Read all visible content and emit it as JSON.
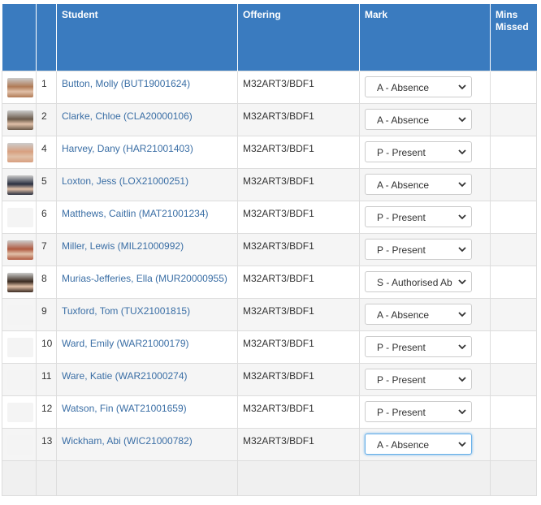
{
  "table": {
    "headers": [
      "Student",
      "Offering",
      "Mark",
      "Mins Missed"
    ],
    "rows": [
      [
        "1",
        "Button, Molly (BUT19001624)",
        "M32ART3/BDF1",
        "A - Absence"
      ],
      [
        "2",
        "Clarke, Chloe (CLA20000106)",
        "M32ART3/BDF1",
        "A - Absence"
      ],
      [
        "4",
        "Harvey, Dany (HAR21001403)",
        "M32ART3/BDF1",
        "P - Present"
      ],
      [
        "5",
        "Loxton, Jess (LOX21000251)",
        "M32ART3/BDF1",
        "A - Absence"
      ],
      [
        "6",
        "Matthews, Caitlin (MAT21001234)",
        "M32ART3/BDF1",
        "P - Present"
      ],
      [
        "7",
        "Miller, Lewis (MIL21000992)",
        "M32ART3/BDF1",
        "P - Present"
      ],
      [
        "8",
        "Murias-Jefferies, Ella (MUR20000955)",
        "M32ART3/BDF1",
        "S - Authorised Ab"
      ],
      [
        "9",
        "Tuxford, Tom (TUX21001815)",
        "M32ART3/BDF1",
        "A - Absence"
      ],
      [
        "10",
        "Ward, Emily (WAR21000179)",
        "M32ART3/BDF1",
        "P - Present"
      ],
      [
        "11",
        "Ware, Katie (WAR21000274)",
        "M32ART3/BDF1",
        "P - Present"
      ],
      [
        "12",
        "Watson, Fin (WAT21001659)",
        "M32ART3/BDF1",
        "P - Present"
      ],
      [
        "13",
        "Wickham, Abi (WIC21000782)",
        "M32ART3/BDF1",
        "A - Absence"
      ]
    ]
  }
}
